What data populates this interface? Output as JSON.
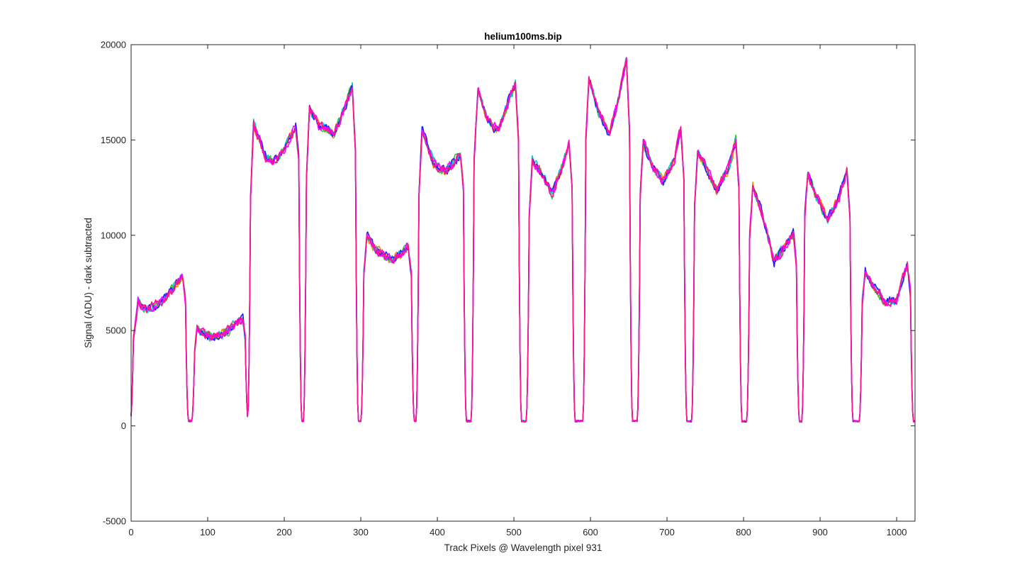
{
  "chart_data": {
    "type": "line",
    "title": "helium100ms.bip",
    "xlabel": "Track Pixels @ Wavelength pixel 931",
    "ylabel": "Signal (ADU) - dark subtracted",
    "xlim": [
      0,
      1024
    ],
    "ylim": [
      -5000,
      20000
    ],
    "xticks": [
      0,
      100,
      200,
      300,
      400,
      500,
      600,
      700,
      800,
      900,
      1000
    ],
    "yticks": [
      -5000,
      0,
      5000,
      10000,
      15000,
      20000
    ],
    "xtick_labels": [
      "0",
      "100",
      "200",
      "300",
      "400",
      "500",
      "600",
      "700",
      "800",
      "900",
      "1000"
    ],
    "ytick_labels": [
      "-5000",
      "0",
      "5000",
      "10000",
      "15000",
      "20000"
    ],
    "grid": false,
    "box": true,
    "series_colors": [
      "#ff8c00",
      "#2ecc2e",
      "#00cccc",
      "#1f1fff",
      "#ff00ff",
      "#ff1493"
    ],
    "fibers": [
      {
        "x": [
          3,
          9,
          20,
          40,
          55,
          67,
          71
        ],
        "y": [
          4500,
          6500,
          6100,
          6500,
          7200,
          7900,
          6500
        ]
      },
      {
        "x": [
          83,
          86,
          100,
          120,
          135,
          146,
          149
        ],
        "y": [
          4000,
          5100,
          4700,
          4800,
          5300,
          5600,
          4500
        ]
      },
      {
        "x": [
          156,
          160,
          175,
          185,
          200,
          215,
          219
        ],
        "y": [
          12000,
          15900,
          14200,
          13800,
          14500,
          15800,
          14000
        ]
      },
      {
        "x": [
          229,
          233,
          245,
          265,
          280,
          289,
          293
        ],
        "y": [
          13000,
          16700,
          15800,
          15300,
          16800,
          17800,
          14500
        ]
      },
      {
        "x": [
          304,
          308,
          320,
          340,
          355,
          362,
          366
        ],
        "y": [
          8000,
          10000,
          9200,
          8700,
          9100,
          9500,
          8000
        ]
      },
      {
        "x": [
          376,
          380,
          395,
          410,
          425,
          430,
          434
        ],
        "y": [
          12000,
          15500,
          13800,
          13300,
          14000,
          14300,
          12500
        ]
      },
      {
        "x": [
          448,
          453,
          465,
          480,
          495,
          502,
          506
        ],
        "y": [
          14000,
          17700,
          16000,
          15500,
          17300,
          17900,
          15000
        ]
      },
      {
        "x": [
          520,
          524,
          535,
          550,
          565,
          572,
          576
        ],
        "y": [
          11000,
          13900,
          13300,
          12200,
          13800,
          14800,
          12500
        ]
      },
      {
        "x": [
          594,
          598,
          610,
          625,
          640,
          647,
          651
        ],
        "y": [
          15000,
          18200,
          16500,
          15300,
          17800,
          19300,
          15500
        ]
      },
      {
        "x": [
          665,
          669,
          680,
          695,
          710,
          718,
          722
        ],
        "y": [
          12000,
          14900,
          13700,
          12800,
          14000,
          15600,
          13000
        ]
      },
      {
        "x": [
          736,
          740,
          750,
          765,
          780,
          790,
          794
        ],
        "y": [
          11500,
          14400,
          13700,
          12300,
          13500,
          15000,
          12500
        ]
      },
      {
        "x": [
          808,
          812,
          825,
          840,
          855,
          865,
          869
        ],
        "y": [
          10000,
          12600,
          11000,
          8600,
          9500,
          10100,
          8500
        ]
      },
      {
        "x": [
          880,
          884,
          895,
          910,
          925,
          935,
          939
        ],
        "y": [
          11000,
          13300,
          12000,
          10800,
          12000,
          13400,
          11000
        ]
      },
      {
        "x": [
          955,
          959,
          970,
          985,
          1000,
          1014,
          1018
        ],
        "y": [
          6500,
          8100,
          7300,
          6500,
          6600,
          8500,
          7000
        ]
      }
    ],
    "floor": 250
  }
}
